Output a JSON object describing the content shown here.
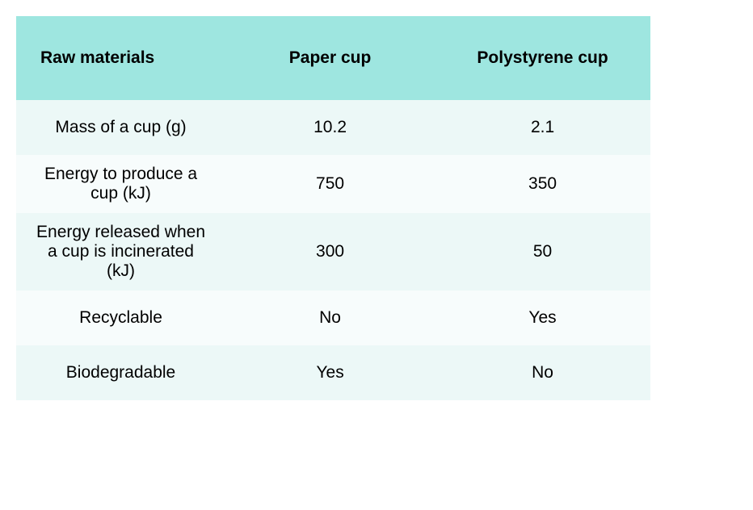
{
  "table": {
    "type": "table",
    "columns": [
      {
        "label": "Raw materials",
        "width": "33%",
        "alignment": "left"
      },
      {
        "label": "Paper cup",
        "width": "33%",
        "alignment": "center"
      },
      {
        "label": "Polystyrene cup",
        "width": "34%",
        "alignment": "center"
      }
    ],
    "rows": [
      {
        "label": "Mass of a cup (g)",
        "paper": "10.2",
        "poly": "2.1"
      },
      {
        "label": "Energy to produce a cup (kJ)",
        "paper": "750",
        "poly": "350"
      },
      {
        "label": "Energy released when a cup is incinerated (kJ)",
        "paper": "300",
        "poly": "50"
      },
      {
        "label": "Recyclable",
        "paper": "No",
        "poly": "Yes"
      },
      {
        "label": "Biodegradable",
        "paper": "Yes",
        "poly": "No"
      }
    ],
    "styles": {
      "header_background_color": "#9ee6e0",
      "row_odd_background_color": "#ecf8f7",
      "row_even_background_color": "#f7fcfc",
      "text_color": "#000000",
      "background_color": "#ffffff",
      "header_font_weight": 700,
      "body_font_weight": 400,
      "header_font_size_pt": 16,
      "body_font_size_pt": 16
    }
  }
}
